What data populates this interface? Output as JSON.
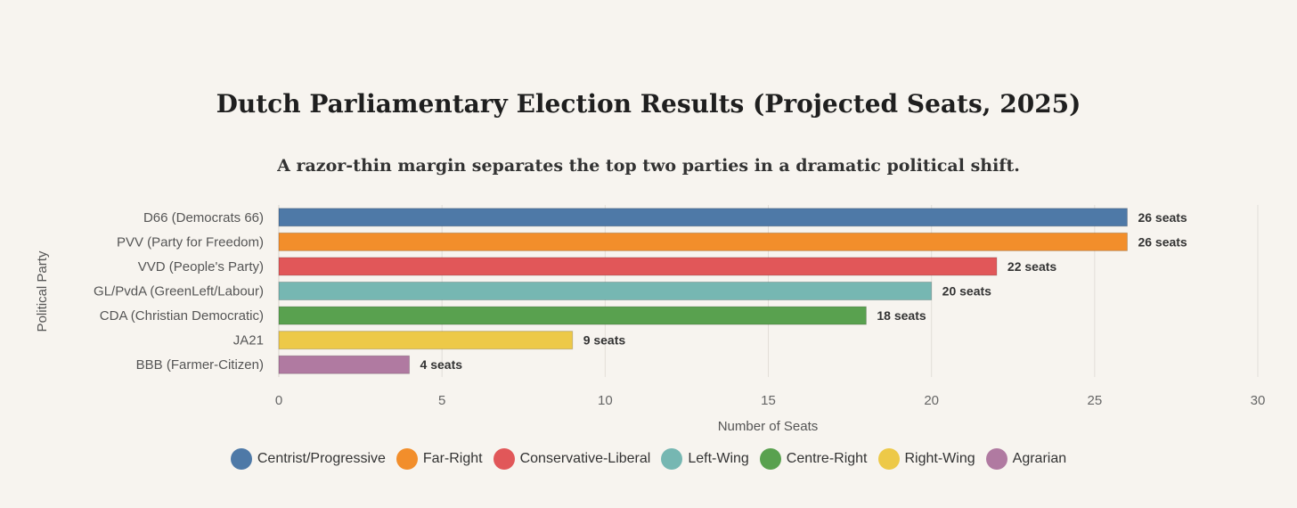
{
  "chart_data": {
    "type": "bar",
    "orientation": "horizontal",
    "title": "Dutch Parliamentary Election Results (Projected Seats, 2025)",
    "subtitle": "A razor-thin margin separates the top two parties in a dramatic political shift.",
    "xlabel": "Number of Seats",
    "ylabel": "Political Party",
    "xlim": [
      0,
      30
    ],
    "xticks": [
      0,
      5,
      10,
      15,
      20,
      25,
      30
    ],
    "grid": true,
    "legend_position": "bottom",
    "categories": [
      "D66 (Democrats 66)",
      "PVV (Party for Freedom)",
      "VVD (People's Party)",
      "GL/PvdA (GreenLeft/Labour)",
      "CDA (Christian Democratic)",
      "JA21",
      "BBB (Farmer-Citizen)"
    ],
    "values": [
      26,
      26,
      22,
      20,
      18,
      9,
      4
    ],
    "data_labels": [
      "26 seats",
      "26 seats",
      "22 seats",
      "20 seats",
      "18 seats",
      "9 seats",
      "4 seats"
    ],
    "groups": [
      "Centrist/Progressive",
      "Far-Right",
      "Conservative-Liberal",
      "Left-Wing",
      "Centre-Right",
      "Right-Wing",
      "Agrarian"
    ],
    "colors": [
      "#4e79a7",
      "#f28e2b",
      "#e15759",
      "#76b7b2",
      "#59a14f",
      "#edc948",
      "#b07aa1"
    ]
  },
  "legend": [
    {
      "label": "Centrist/Progressive",
      "color": "#4e79a7"
    },
    {
      "label": "Far-Right",
      "color": "#f28e2b"
    },
    {
      "label": "Conservative-Liberal",
      "color": "#e15759"
    },
    {
      "label": "Left-Wing",
      "color": "#76b7b2"
    },
    {
      "label": "Centre-Right",
      "color": "#59a14f"
    },
    {
      "label": "Right-Wing",
      "color": "#edc948"
    },
    {
      "label": "Agrarian",
      "color": "#b07aa1"
    }
  ]
}
